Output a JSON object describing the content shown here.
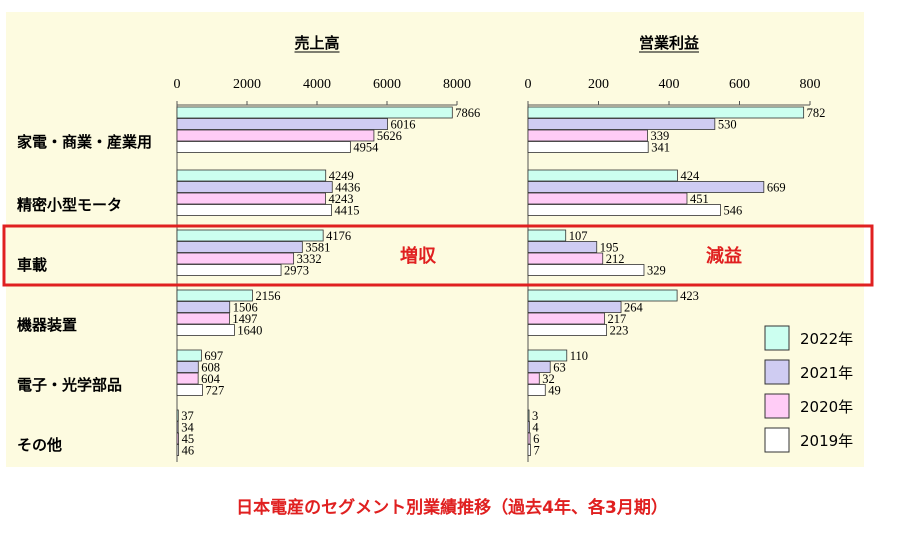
{
  "chart_data": {
    "type": "bar",
    "orientation": "horizontal",
    "caption": "日本電産のセグメント別業績推移（過去4年、各3月期）",
    "categories": [
      "家電・商業・産業用",
      "精密小型モータ",
      "車載",
      "機器装置",
      "電子・光学部品",
      "その他"
    ],
    "legend": {
      "placement": "right",
      "entries": [
        "2022年",
        "2021年",
        "2020年",
        "2019年"
      ]
    },
    "colors": {
      "2022年": "#ccfff0",
      "2021年": "#cfccf2",
      "2020年": "#ffccf6",
      "2019年": "#ffffff",
      "highlight": "#e02020",
      "background": "#fdfbe0"
    },
    "panels": [
      {
        "title": "売上高",
        "xlim": [
          0,
          8000
        ],
        "ticks": [
          "0",
          "2000",
          "4000",
          "6000",
          "8000"
        ],
        "series": [
          {
            "name": "2022年",
            "values": [
              7866,
              4249,
              4176,
              2156,
              697,
              37
            ]
          },
          {
            "name": "2021年",
            "values": [
              6016,
              4436,
              3581,
              1506,
              608,
              34
            ]
          },
          {
            "name": "2020年",
            "values": [
              5626,
              4243,
              3332,
              1497,
              604,
              45
            ]
          },
          {
            "name": "2019年",
            "values": [
              4954,
              4415,
              2973,
              1640,
              727,
              46
            ]
          }
        ],
        "annotation": "増収"
      },
      {
        "title": "営業利益",
        "xlim": [
          0,
          800
        ],
        "ticks": [
          "0",
          "200",
          "400",
          "600",
          "800"
        ],
        "series": [
          {
            "name": "2022年",
            "values": [
              782,
              424,
              107,
              423,
              110,
              3
            ]
          },
          {
            "name": "2021年",
            "values": [
              530,
              669,
              195,
              264,
              63,
              4
            ]
          },
          {
            "name": "2020年",
            "values": [
              339,
              451,
              212,
              217,
              32,
              6
            ]
          },
          {
            "name": "2019年",
            "values": [
              341,
              546,
              329,
              223,
              49,
              7
            ]
          }
        ],
        "annotation": "減益"
      }
    ],
    "highlighted_category": "車載"
  }
}
